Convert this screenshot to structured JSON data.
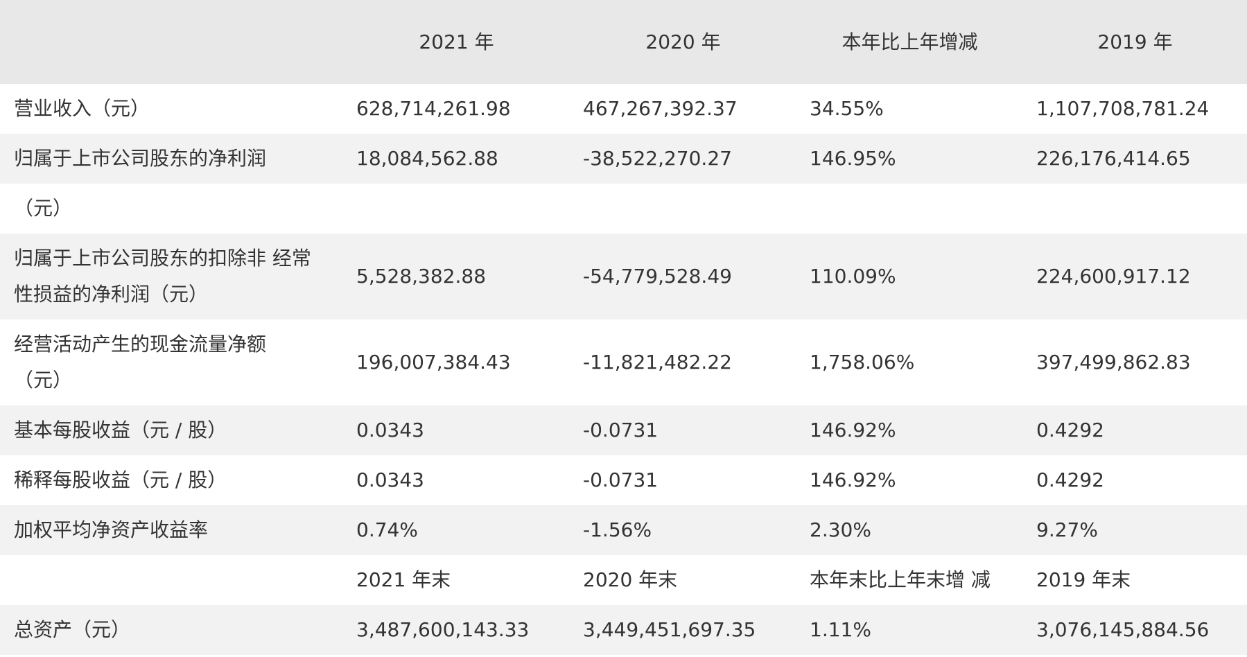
{
  "header": {
    "col1": "2021 年",
    "col2": "2020 年",
    "col3": "本年比上年增减",
    "col4": "2019 年"
  },
  "rows": [
    {
      "label": "营业收入（元）",
      "v2021": "628,714,261.98",
      "v2020": "467,267,392.37",
      "change": "34.55%",
      "v2019": "1,107,708,781.24"
    },
    {
      "label_line1": "归属于上市公司股东的净利润",
      "label_line2": "（元）",
      "v2021": "18,084,562.88",
      "v2020": "-38,522,270.27",
      "change": "146.95%",
      "v2019": "226,176,414.65"
    },
    {
      "label_line1": "归属于上市公司股东的扣除非 经常",
      "label_line2": "性损益的净利润（元）",
      "v2021": "5,528,382.88",
      "v2020": "-54,779,528.49",
      "change": "110.09%",
      "v2019": "224,600,917.12"
    },
    {
      "label_line1": "经营活动产生的现金流量净额",
      "label_line2": "（元）",
      "v2021": "196,007,384.43",
      "v2020": "-11,821,482.22",
      "change": "1,758.06%",
      "v2019": "397,499,862.83"
    },
    {
      "label": "基本每股收益（元 / 股）",
      "v2021": "0.0343",
      "v2020": "-0.0731",
      "change": "146.92%",
      "v2019": "0.4292"
    },
    {
      "label": "稀释每股收益（元 / 股）",
      "v2021": "0.0343",
      "v2020": "-0.0731",
      "change": "146.92%",
      "v2019": "0.4292"
    },
    {
      "label": "加权平均净资产收益率",
      "v2021": "0.74%",
      "v2020": "-1.56%",
      "change": "2.30%",
      "v2019": "9.27%"
    }
  ],
  "subheader": {
    "col1": "2021 年末",
    "col2": "2020 年末",
    "col3": "本年末比上年末增 减",
    "col4": "2019 年末"
  },
  "assets": {
    "label": "总资产（元）",
    "v2021": "3,487,600,143.33",
    "v2020": "3,449,451,697.35",
    "change": "1.11%",
    "v2019": "3,076,145,884.56"
  },
  "colors": {
    "header_bg": "#e8e8e8",
    "stripe_bg": "#f2f2f2",
    "text": "#333333"
  }
}
